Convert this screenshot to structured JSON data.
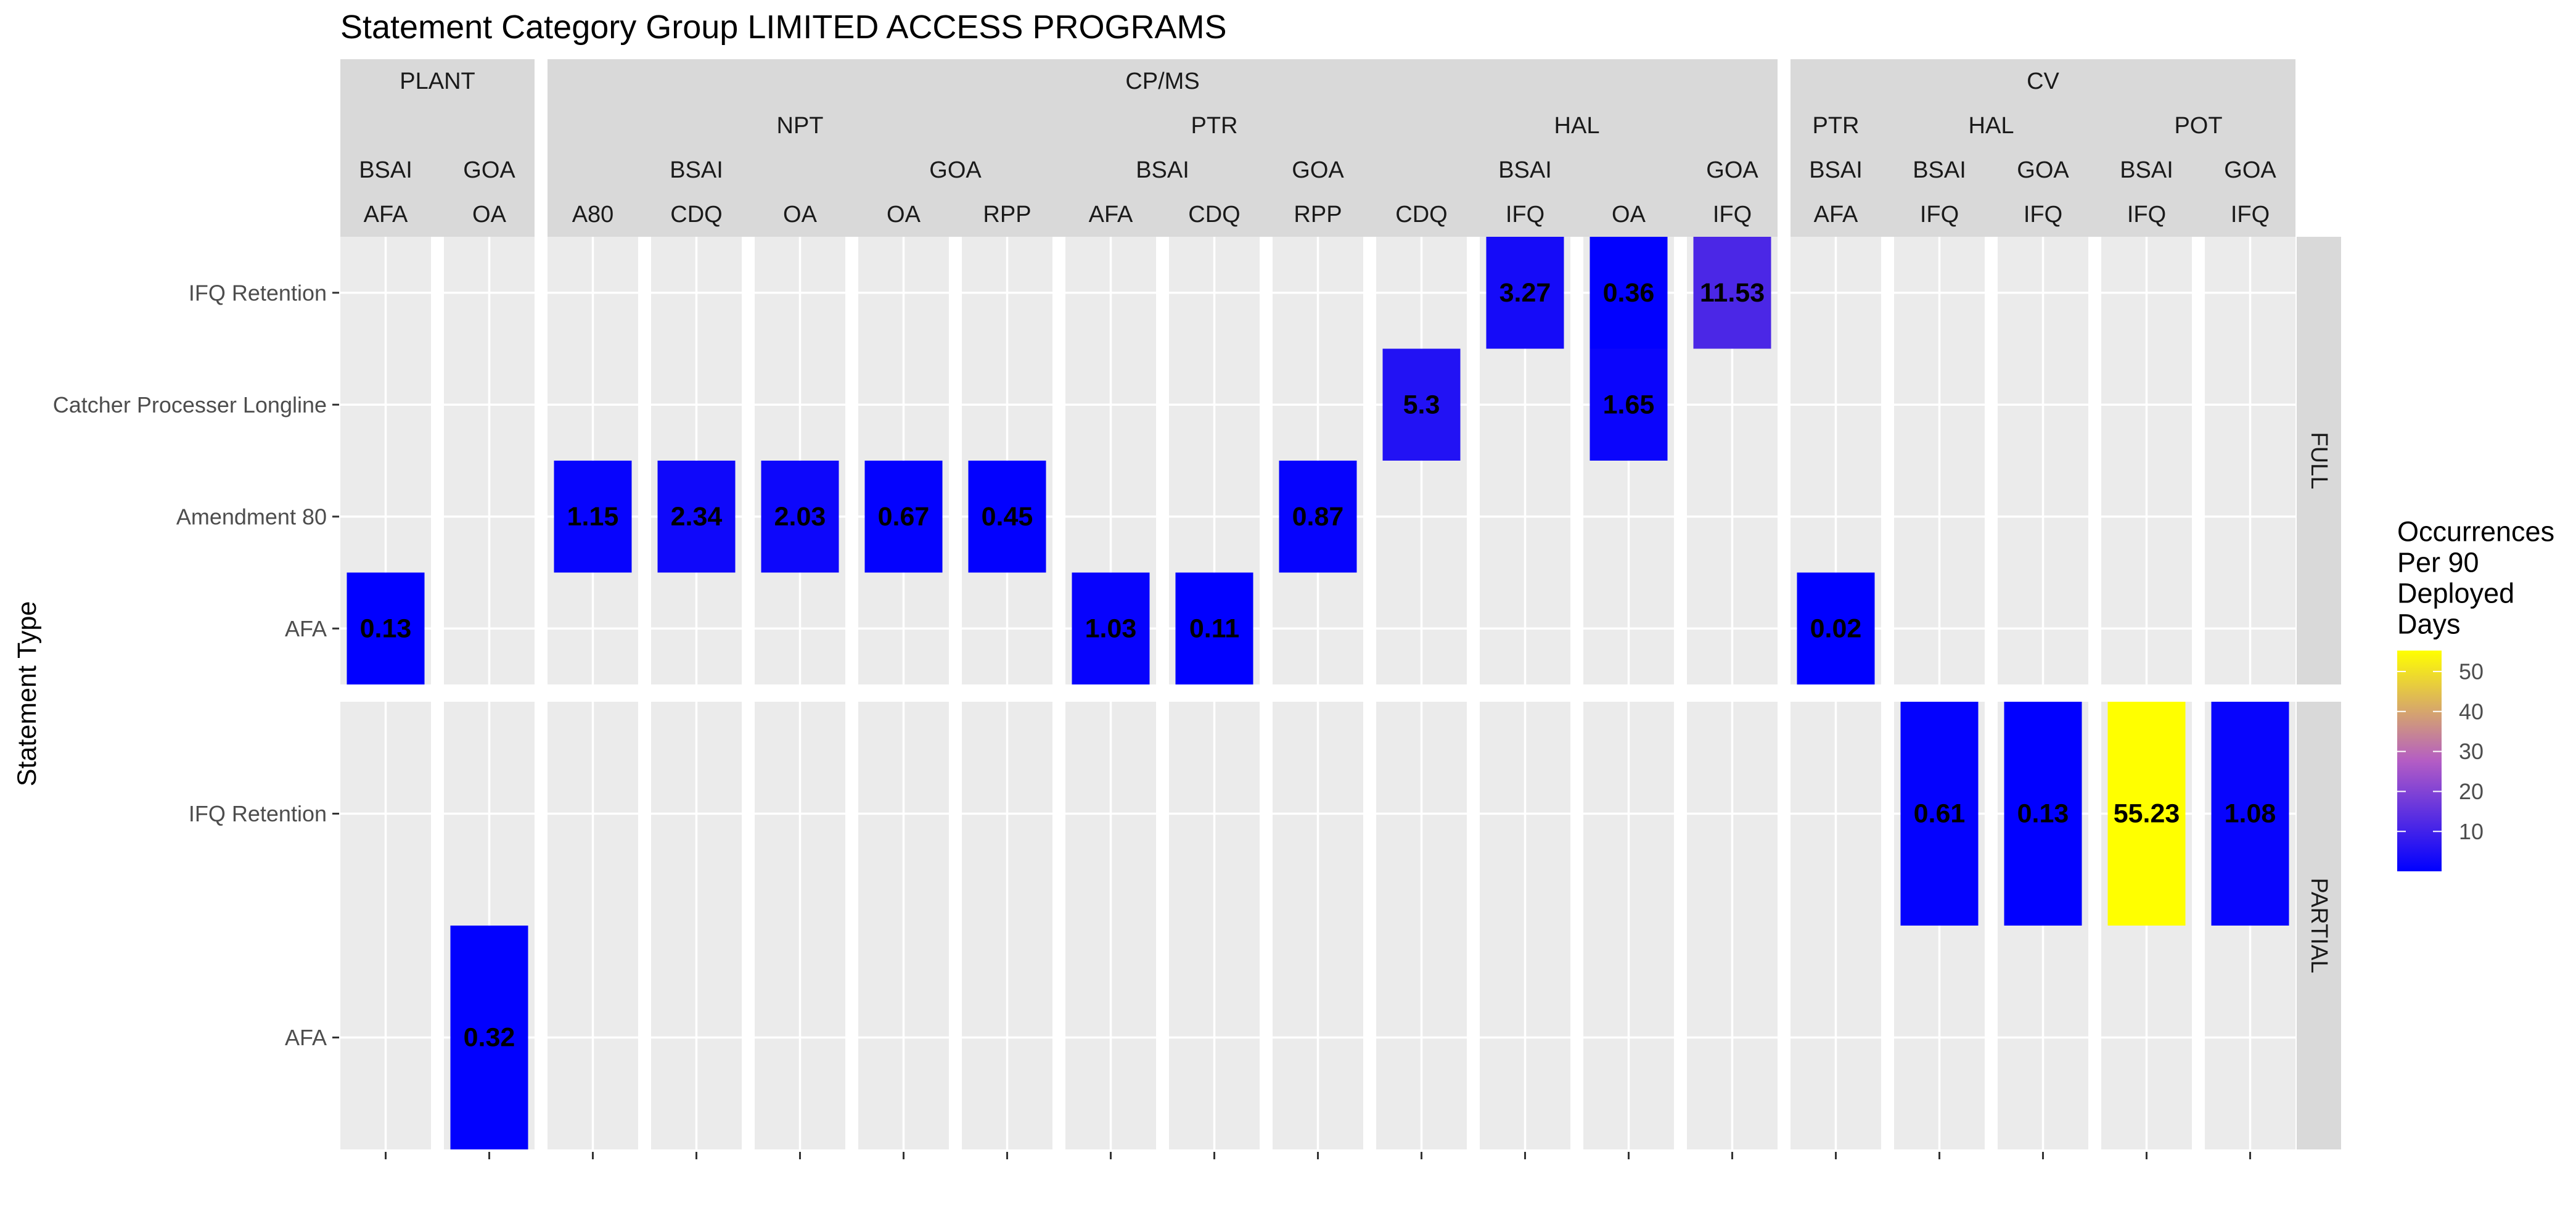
{
  "chart_data": {
    "type": "heatmap",
    "title": "Statement Category Group LIMITED ACCESS PROGRAMS",
    "ylabel": "Statement Type",
    "legend": {
      "title_lines": [
        "Occurrences",
        "Per 90",
        "Deployed",
        "Days"
      ],
      "ticks": [
        10,
        20,
        30,
        40,
        50
      ],
      "range": [
        0.02,
        55.23
      ],
      "low_color": "#0000ff",
      "high_color": "#ffff00",
      "placement": "right"
    },
    "colors": {
      "panel_bg": "#ebebeb",
      "strip_bg": "#d9d9d9",
      "grid": "#ffffff",
      "label_text": "#4d4d4d",
      "value_text": "#000000"
    },
    "columns": [
      {
        "l1": "PLANT",
        "l2": "",
        "l3": "BSAI",
        "l4": "AFA"
      },
      {
        "l1": "PLANT",
        "l2": "",
        "l3": "GOA",
        "l4": "OA"
      },
      {
        "l1": "CP/MS",
        "l2": "NPT",
        "l3": "BSAI",
        "l4": "A80"
      },
      {
        "l1": "CP/MS",
        "l2": "NPT",
        "l3": "BSAI",
        "l4": "CDQ"
      },
      {
        "l1": "CP/MS",
        "l2": "NPT",
        "l3": "BSAI",
        "l4": "OA"
      },
      {
        "l1": "CP/MS",
        "l2": "NPT",
        "l3": "GOA",
        "l4": "OA"
      },
      {
        "l1": "CP/MS",
        "l2": "NPT",
        "l3": "GOA",
        "l4": "RPP"
      },
      {
        "l1": "CP/MS",
        "l2": "PTR",
        "l3": "BSAI",
        "l4": "AFA"
      },
      {
        "l1": "CP/MS",
        "l2": "PTR",
        "l3": "BSAI",
        "l4": "CDQ"
      },
      {
        "l1": "CP/MS",
        "l2": "PTR",
        "l3": "GOA",
        "l4": "RPP"
      },
      {
        "l1": "CP/MS",
        "l2": "HAL",
        "l3": "BSAI",
        "l4": "CDQ"
      },
      {
        "l1": "CP/MS",
        "l2": "HAL",
        "l3": "BSAI",
        "l4": "IFQ"
      },
      {
        "l1": "CP/MS",
        "l2": "HAL",
        "l3": "BSAI",
        "l4": "OA"
      },
      {
        "l1": "CP/MS",
        "l2": "HAL",
        "l3": "GOA",
        "l4": "IFQ"
      },
      {
        "l1": "CV",
        "l2": "PTR",
        "l3": "BSAI",
        "l4": "AFA"
      },
      {
        "l1": "CV",
        "l2": "HAL",
        "l3": "BSAI",
        "l4": "IFQ"
      },
      {
        "l1": "CV",
        "l2": "HAL",
        "l3": "GOA",
        "l4": "IFQ"
      },
      {
        "l1": "CV",
        "l2": "POT",
        "l3": "BSAI",
        "l4": "IFQ"
      },
      {
        "l1": "CV",
        "l2": "POT",
        "l3": "GOA",
        "l4": "IFQ"
      }
    ],
    "rows": [
      {
        "strip": "FULL",
        "categories": [
          "IFQ Retention",
          "Catcher Processer Longline",
          "Amendment 80",
          "AFA"
        ]
      },
      {
        "strip": "PARTIAL",
        "categories": [
          "IFQ Retention",
          "AFA"
        ]
      }
    ],
    "cells": [
      {
        "row": "FULL",
        "col": 0,
        "y": "AFA",
        "value": 0.13,
        "label": "0.13"
      },
      {
        "row": "FULL",
        "col": 2,
        "y": "Amendment 80",
        "value": 1.15,
        "label": "1.15"
      },
      {
        "row": "FULL",
        "col": 3,
        "y": "Amendment 80",
        "value": 2.34,
        "label": "2.34"
      },
      {
        "row": "FULL",
        "col": 4,
        "y": "Amendment 80",
        "value": 2.03,
        "label": "2.03"
      },
      {
        "row": "FULL",
        "col": 5,
        "y": "Amendment 80",
        "value": 0.67,
        "label": "0.67"
      },
      {
        "row": "FULL",
        "col": 6,
        "y": "Amendment 80",
        "value": 0.45,
        "label": "0.45"
      },
      {
        "row": "FULL",
        "col": 7,
        "y": "AFA",
        "value": 1.03,
        "label": "1.03"
      },
      {
        "row": "FULL",
        "col": 8,
        "y": "AFA",
        "value": 0.11,
        "label": "0.11"
      },
      {
        "row": "FULL",
        "col": 9,
        "y": "Amendment 80",
        "value": 0.87,
        "label": "0.87"
      },
      {
        "row": "FULL",
        "col": 10,
        "y": "Catcher Processer Longline",
        "value": 5.3,
        "label": "5.3"
      },
      {
        "row": "FULL",
        "col": 11,
        "y": "IFQ Retention",
        "value": 3.27,
        "label": "3.27"
      },
      {
        "row": "FULL",
        "col": 12,
        "y": "IFQ Retention",
        "value": 0.36,
        "label": "0.36"
      },
      {
        "row": "FULL",
        "col": 12,
        "y": "Catcher Processer Longline",
        "value": 1.65,
        "label": "1.65"
      },
      {
        "row": "FULL",
        "col": 13,
        "y": "IFQ Retention",
        "value": 11.53,
        "label": "11.53"
      },
      {
        "row": "FULL",
        "col": 14,
        "y": "AFA",
        "value": 0.02,
        "label": "0.02"
      },
      {
        "row": "PARTIAL",
        "col": 1,
        "y": "AFA",
        "value": 0.32,
        "label": "0.32"
      },
      {
        "row": "PARTIAL",
        "col": 15,
        "y": "IFQ Retention",
        "value": 0.61,
        "label": "0.61"
      },
      {
        "row": "PARTIAL",
        "col": 16,
        "y": "IFQ Retention",
        "value": 0.13,
        "label": "0.13"
      },
      {
        "row": "PARTIAL",
        "col": 17,
        "y": "IFQ Retention",
        "value": 55.23,
        "label": "55.23"
      },
      {
        "row": "PARTIAL",
        "col": 18,
        "y": "IFQ Retention",
        "value": 1.08,
        "label": "1.08"
      }
    ]
  }
}
